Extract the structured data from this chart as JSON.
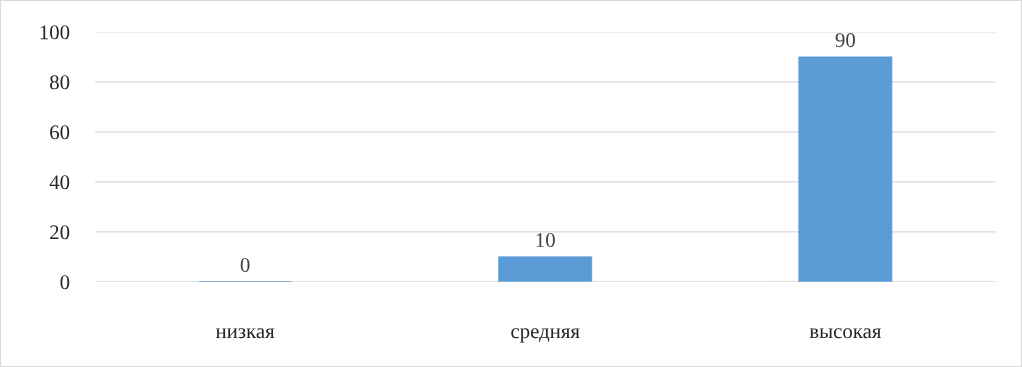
{
  "chart_data": {
    "type": "bar",
    "categories": [
      "низкая",
      "средняя",
      "высокая"
    ],
    "values": [
      0,
      10,
      90
    ],
    "color": "#5b9bd5",
    "ylim": [
      0,
      100
    ],
    "yticks": [
      0,
      20,
      40,
      60,
      80,
      100
    ],
    "grid": "y",
    "data_labels": true
  }
}
